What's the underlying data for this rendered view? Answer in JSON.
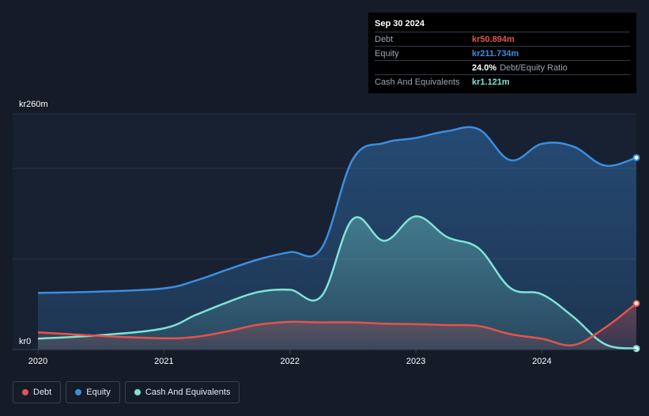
{
  "colors": {
    "background": "#151b27",
    "debt": "#e5534b",
    "equity": "#3a8ee0",
    "cash": "#7ee3d6"
  },
  "tooltip": {
    "date": "Sep 30 2024",
    "rows": [
      {
        "label": "Debt",
        "value": "kr50.894m",
        "extra": ""
      },
      {
        "label": "Equity",
        "value": "kr211.734m",
        "extra": ""
      },
      {
        "label": "",
        "value": "24.0%",
        "extra": "Debt/Equity Ratio"
      },
      {
        "label": "Cash And Equivalents",
        "value": "kr1.121m",
        "extra": ""
      }
    ]
  },
  "legend": {
    "items": [
      {
        "label": "Debt",
        "color": "#e5534b"
      },
      {
        "label": "Equity",
        "color": "#3a8ee0"
      },
      {
        "label": "Cash And Equivalents",
        "color": "#7ee3d6"
      }
    ]
  },
  "chart_data": {
    "type": "area",
    "y_unit_label_top": "kr260m",
    "y_unit_label_bottom": "kr0",
    "ylim": [
      0,
      260
    ],
    "xlim": [
      2020.0,
      2024.75
    ],
    "x_ticks": [
      {
        "value": 2020,
        "label": "2020"
      },
      {
        "value": 2021,
        "label": "2021"
      },
      {
        "value": 2022,
        "label": "2022"
      },
      {
        "value": 2023,
        "label": "2023"
      },
      {
        "value": 2024,
        "label": "2024"
      }
    ],
    "gridlines": [
      260,
      200,
      100
    ],
    "series": [
      {
        "name": "Equity",
        "key": "equity",
        "points": [
          [
            2020.0,
            62.5
          ],
          [
            2020.5,
            64.0
          ],
          [
            2021.0,
            67.5
          ],
          [
            2021.25,
            76.0
          ],
          [
            2021.5,
            88.0
          ],
          [
            2021.75,
            99.5
          ],
          [
            2022.0,
            107.5
          ],
          [
            2022.25,
            111.5
          ],
          [
            2022.5,
            210.0
          ],
          [
            2022.75,
            228.0
          ],
          [
            2023.0,
            233.5
          ],
          [
            2023.25,
            241.0
          ],
          [
            2023.5,
            243.0
          ],
          [
            2023.75,
            209.0
          ],
          [
            2024.0,
            227.0
          ],
          [
            2024.25,
            224.0
          ],
          [
            2024.5,
            203.0
          ],
          [
            2024.75,
            211.7
          ]
        ]
      },
      {
        "name": "Cash And Equivalents",
        "key": "cash",
        "points": [
          [
            2020.0,
            12.0
          ],
          [
            2020.5,
            16.0
          ],
          [
            2021.0,
            23.5
          ],
          [
            2021.25,
            38.0
          ],
          [
            2021.5,
            52.0
          ],
          [
            2021.75,
            63.5
          ],
          [
            2022.0,
            66.0
          ],
          [
            2022.25,
            59.0
          ],
          [
            2022.5,
            144.0
          ],
          [
            2022.75,
            120.0
          ],
          [
            2023.0,
            147.0
          ],
          [
            2023.25,
            124.0
          ],
          [
            2023.5,
            111.5
          ],
          [
            2023.75,
            68.0
          ],
          [
            2024.0,
            61.0
          ],
          [
            2024.25,
            36.0
          ],
          [
            2024.5,
            6.0
          ],
          [
            2024.75,
            1.1
          ]
        ]
      },
      {
        "name": "Debt",
        "key": "debt",
        "points": [
          [
            2020.0,
            19.0
          ],
          [
            2020.5,
            15.0
          ],
          [
            2021.0,
            12.5
          ],
          [
            2021.25,
            14.0
          ],
          [
            2021.5,
            20.0
          ],
          [
            2021.75,
            27.5
          ],
          [
            2022.0,
            30.5
          ],
          [
            2022.25,
            30.0
          ],
          [
            2022.5,
            30.0
          ],
          [
            2022.75,
            28.5
          ],
          [
            2023.0,
            28.0
          ],
          [
            2023.25,
            27.0
          ],
          [
            2023.5,
            26.0
          ],
          [
            2023.75,
            17.0
          ],
          [
            2024.0,
            12.0
          ],
          [
            2024.25,
            5.0
          ],
          [
            2024.5,
            24.0
          ],
          [
            2024.75,
            50.9
          ]
        ]
      }
    ]
  }
}
